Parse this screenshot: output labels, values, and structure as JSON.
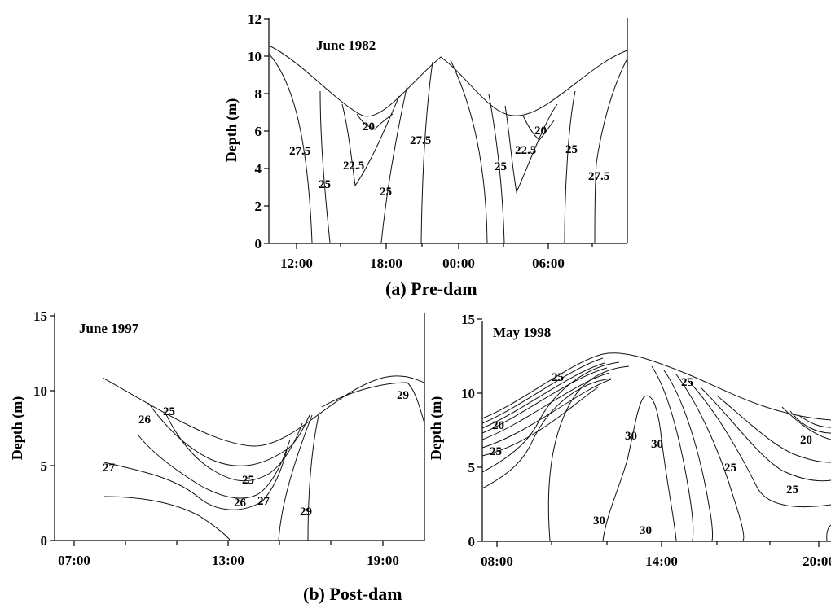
{
  "chart_data": [
    {
      "type": "contour",
      "title": "June 1982",
      "caption": "(a) Pre-dam",
      "ylabel": "Depth (m)",
      "ylim": [
        0,
        12
      ],
      "yticks": [
        0,
        2,
        4,
        6,
        8,
        10,
        12
      ],
      "xticks": [
        "12:00",
        "18:00",
        "00:00",
        "06:00"
      ],
      "contour_labels": [
        "20",
        "27.5",
        "22.5",
        "25",
        "25",
        "27.5",
        "20",
        "22.5",
        "25",
        "25",
        "27.5"
      ]
    },
    {
      "type": "contour",
      "title": "June 1997",
      "caption": "(b) Post-dam",
      "ylabel": "Depth (m)",
      "ylim": [
        0,
        15
      ],
      "yticks": [
        0,
        5,
        10,
        15
      ],
      "xticks": [
        "07:00",
        "13:00",
        "19:00"
      ],
      "contour_labels": [
        "26",
        "25",
        "27",
        "25",
        "26",
        "27",
        "29",
        "29"
      ]
    },
    {
      "type": "contour",
      "title": "May 1998",
      "ylabel": "Depth (m)",
      "ylim": [
        0,
        15
      ],
      "yticks": [
        0,
        5,
        10,
        15
      ],
      "xticks": [
        "08:00",
        "14:00",
        "20:00"
      ],
      "contour_labels": [
        "25",
        "20",
        "25",
        "25",
        "30",
        "30",
        "25",
        "20",
        "25",
        "30",
        "30"
      ]
    }
  ]
}
